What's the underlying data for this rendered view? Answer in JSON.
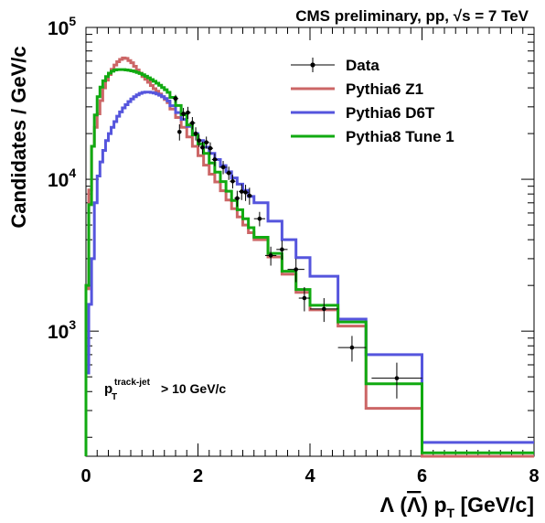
{
  "chart_data": {
    "type": "line",
    "title": "CMS preliminary, pp, √s = 7 TeV",
    "xlabel": "Λ (Λ) p_T [GeV/c]",
    "ylabel": "Candidates / GeV/c",
    "xlim": [
      0,
      8
    ],
    "ylim": [
      150,
      100000
    ],
    "log_y": true,
    "grid": false,
    "legend_position": "top-right",
    "annotation": {
      "main": "p",
      "sub": "T",
      "sup": "track-jet",
      "tail": "> 10 GeV/c"
    },
    "x_ticks": [
      "0",
      "2",
      "4",
      "6",
      "8"
    ],
    "y_ticks": [
      {
        "value": 1000,
        "mant": "10",
        "exp": "3"
      },
      {
        "value": 10000,
        "mant": "10",
        "exp": "4"
      },
      {
        "value": 100000,
        "mant": "10",
        "exp": "5"
      }
    ],
    "series": [
      {
        "name": "Pythia6 Z1",
        "color": "#cc6666",
        "edges": [
          0,
          0.05,
          0.1,
          0.15,
          0.2,
          0.25,
          0.3,
          0.35,
          0.4,
          0.45,
          0.5,
          0.55,
          0.6,
          0.65,
          0.7,
          0.75,
          0.8,
          0.85,
          0.9,
          0.95,
          1.0,
          1.05,
          1.1,
          1.15,
          1.2,
          1.25,
          1.3,
          1.35,
          1.4,
          1.45,
          1.5,
          1.6,
          1.7,
          1.8,
          1.9,
          2.0,
          2.1,
          2.2,
          2.3,
          2.4,
          2.5,
          2.6,
          2.7,
          2.8,
          2.9,
          3.0,
          3.25,
          3.5,
          3.75,
          4.0,
          4.5,
          5.0,
          6.0,
          8.0
        ],
        "values": [
          1900,
          8500,
          16500,
          22000,
          27000,
          33000,
          40000,
          45000,
          49000,
          53000,
          56500,
          59500,
          61500,
          63000,
          62500,
          60500,
          58500,
          55500,
          52500,
          50000,
          47500,
          45500,
          43500,
          41500,
          39500,
          38000,
          36500,
          35000,
          33500,
          32000,
          29000,
          25500,
          22000,
          19000,
          16500,
          14300,
          12400,
          10800,
          9600,
          8400,
          7300,
          6400,
          5650,
          5000,
          4450,
          4000,
          3080,
          2370,
          1800,
          1380,
          1080,
          310,
          127
        ]
      },
      {
        "name": "Pythia6 D6T",
        "color": "#5555dd",
        "edges": [
          0,
          0.05,
          0.1,
          0.15,
          0.2,
          0.25,
          0.3,
          0.35,
          0.4,
          0.45,
          0.5,
          0.55,
          0.6,
          0.65,
          0.7,
          0.75,
          0.8,
          0.85,
          0.9,
          0.95,
          1.0,
          1.05,
          1.1,
          1.15,
          1.2,
          1.25,
          1.3,
          1.35,
          1.4,
          1.45,
          1.5,
          1.6,
          1.7,
          1.8,
          1.9,
          2.0,
          2.1,
          2.2,
          2.3,
          2.4,
          2.5,
          2.6,
          2.7,
          2.8,
          2.9,
          3.0,
          3.25,
          3.5,
          3.75,
          4.0,
          4.5,
          5.0,
          6.0,
          8.0
        ],
        "values": [
          530,
          1500,
          3000,
          7000,
          10500,
          13000,
          15500,
          18000,
          20000,
          22000,
          24000,
          26000,
          27800,
          29500,
          31000,
          32500,
          33800,
          35000,
          36000,
          36800,
          37300,
          37500,
          37500,
          37300,
          37000,
          36500,
          35800,
          35000,
          34000,
          32800,
          30500,
          27500,
          24800,
          22300,
          20000,
          18000,
          16300,
          14800,
          13500,
          12300,
          11200,
          10200,
          9300,
          8450,
          7700,
          7000,
          5300,
          4000,
          3050,
          2300,
          1200,
          700,
          185
        ]
      },
      {
        "name": "Pythia8 Tune 1",
        "color": "#11aa11",
        "edges": [
          0,
          0.05,
          0.1,
          0.15,
          0.2,
          0.25,
          0.3,
          0.35,
          0.4,
          0.45,
          0.5,
          0.55,
          0.6,
          0.65,
          0.7,
          0.75,
          0.8,
          0.85,
          0.9,
          0.95,
          1.0,
          1.05,
          1.1,
          1.15,
          1.2,
          1.25,
          1.3,
          1.35,
          1.4,
          1.45,
          1.5,
          1.6,
          1.7,
          1.8,
          1.9,
          2.0,
          2.1,
          2.2,
          2.3,
          2.4,
          2.5,
          2.6,
          2.7,
          2.8,
          2.9,
          3.0,
          3.25,
          3.5,
          3.75,
          4.0,
          4.5,
          5.0,
          6.0,
          8.0
        ],
        "values": [
          2000,
          6800,
          16500,
          26500,
          35000,
          40500,
          44500,
          47500,
          50000,
          51500,
          52500,
          52800,
          52800,
          52800,
          52500,
          52200,
          51800,
          51200,
          50500,
          49700,
          48800,
          47700,
          46600,
          45400,
          44200,
          42900,
          41600,
          40200,
          38900,
          37400,
          34600,
          30600,
          26600,
          22800,
          19600,
          17100,
          14800,
          12800,
          11150,
          9650,
          8350,
          7250,
          6300,
          5500,
          4800,
          4150,
          3250,
          2480,
          1880,
          1480,
          1150,
          450,
          158
        ]
      },
      {
        "name": "Data",
        "color": "#000000",
        "points": [
          {
            "x": 1.6,
            "y": 34000,
            "xerr": 0.05,
            "yerr": 2000
          },
          {
            "x": 1.67,
            "y": 20500,
            "xerr": 0.03,
            "yerr": 2500
          },
          {
            "x": 1.74,
            "y": 27000,
            "xerr": 0.05,
            "yerr": 2500
          },
          {
            "x": 1.82,
            "y": 27500,
            "xerr": 0.05,
            "yerr": 2500
          },
          {
            "x": 1.9,
            "y": 23500,
            "xerr": 0.05,
            "yerr": 2200
          },
          {
            "x": 1.96,
            "y": 20000,
            "xerr": 0.04,
            "yerr": 2000
          },
          {
            "x": 2.02,
            "y": 18000,
            "xerr": 0.04,
            "yerr": 1700
          },
          {
            "x": 2.08,
            "y": 16200,
            "xerr": 0.04,
            "yerr": 1500
          },
          {
            "x": 2.15,
            "y": 17500,
            "xerr": 0.05,
            "yerr": 1600
          },
          {
            "x": 2.22,
            "y": 16000,
            "xerr": 0.05,
            "yerr": 1500
          },
          {
            "x": 2.3,
            "y": 13500,
            "xerr": 0.05,
            "yerr": 1300
          },
          {
            "x": 2.45,
            "y": 12000,
            "xerr": 0.07,
            "yerr": 1200
          },
          {
            "x": 2.55,
            "y": 11000,
            "xerr": 0.05,
            "yerr": 1100
          },
          {
            "x": 2.62,
            "y": 9700,
            "xerr": 0.05,
            "yerr": 1000
          },
          {
            "x": 2.7,
            "y": 7500,
            "xerr": 0.05,
            "yerr": 900
          },
          {
            "x": 2.78,
            "y": 8300,
            "xerr": 0.05,
            "yerr": 1000
          },
          {
            "x": 2.85,
            "y": 8200,
            "xerr": 0.05,
            "yerr": 1000
          },
          {
            "x": 2.92,
            "y": 7800,
            "xerr": 0.05,
            "yerr": 1000
          },
          {
            "x": 3.1,
            "y": 5500,
            "xerr": 0.1,
            "yerr": 600
          },
          {
            "x": 3.3,
            "y": 3150,
            "xerr": 0.1,
            "yerr": 450
          },
          {
            "x": 3.5,
            "y": 3450,
            "xerr": 0.1,
            "yerr": 500
          },
          {
            "x": 3.75,
            "y": 2550,
            "xerr": 0.15,
            "yerr": 450
          },
          {
            "x": 3.9,
            "y": 1650,
            "xerr": 0.1,
            "yerr": 300
          },
          {
            "x": 4.25,
            "y": 1400,
            "xerr": 0.25,
            "yerr": 250
          },
          {
            "x": 4.75,
            "y": 780,
            "xerr": 0.25,
            "yerr": 150
          },
          {
            "x": 5.55,
            "y": 490,
            "xerr": 0.45,
            "yerr": 130
          }
        ]
      }
    ],
    "legend": [
      {
        "label": "Data",
        "color": "#000000",
        "kind": "marker"
      },
      {
        "label": "Pythia6 Z1",
        "color": "#cc6666",
        "kind": "line"
      },
      {
        "label": "Pythia6 D6T",
        "color": "#5555dd",
        "kind": "line"
      },
      {
        "label": "Pythia8 Tune 1",
        "color": "#11aa11",
        "kind": "line"
      }
    ]
  }
}
